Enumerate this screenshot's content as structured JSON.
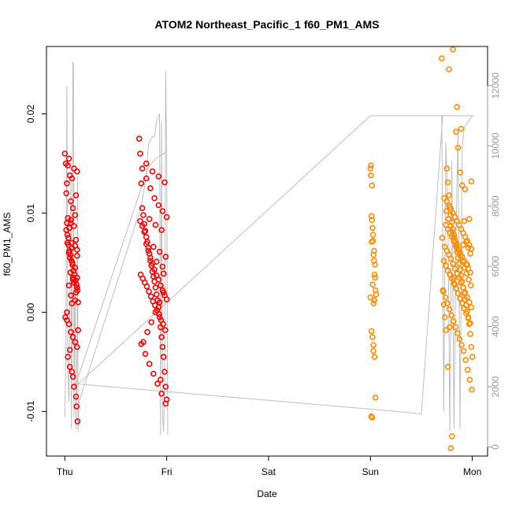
{
  "chart_data": {
    "type": "scatter",
    "title": "ATOM2 Northeast_Pacific_1 f60_PM1_AMS",
    "xlabel": "Date",
    "ylabel": "f60_PM1_AMS",
    "ylabel_right": "",
    "x_ticks": [
      "Thu",
      "Fri",
      "Sat",
      "Sun",
      "Mon"
    ],
    "xlim": [
      -0.18,
      4.15
    ],
    "y_ticks": [
      -0.01,
      0.0,
      0.01,
      0.02
    ],
    "y_tick_labels": [
      "-0.01",
      "0.00",
      "0.01",
      "0.02"
    ],
    "ylim": [
      -0.0145,
      0.0268
    ],
    "y2_ticks": [
      0,
      2000,
      4000,
      6000,
      8000,
      10000,
      12000
    ],
    "y2_tick_labels": [
      "0",
      "2000",
      "4000",
      "6000",
      "8000",
      "10000",
      "12000"
    ],
    "y2lim": [
      -300,
      13300
    ],
    "grid": false,
    "legend": "none",
    "colors": {
      "red_group": "#ff0000",
      "orange_group": "#ff8c00",
      "line": "#bebebe",
      "axis": "#000000"
    },
    "series": [
      {
        "color": "red",
        "x": [
          0.0,
          0.01,
          0.015,
          0.02,
          0.025,
          0.03,
          0.035,
          0.04,
          0.045,
          0.05,
          0.055,
          0.06,
          0.065,
          0.07,
          0.075,
          0.08,
          0.09,
          0.1,
          0.11,
          0.12,
          0.13,
          0.015,
          0.025,
          0.035,
          0.045,
          0.055,
          0.065,
          0.075,
          0.085,
          0.095,
          0.105,
          0.115,
          0.125,
          0.005,
          0.02,
          0.04,
          0.06,
          0.08,
          0.1,
          0.12,
          0.02,
          0.04,
          0.06,
          0.08,
          0.1,
          0.12,
          0.03,
          0.05,
          0.07,
          0.09,
          0.11,
          0.03,
          0.05,
          0.07,
          0.09,
          0.11,
          0.125,
          0.02,
          0.06,
          0.1,
          0.04,
          0.08,
          0.12,
          0.06,
          0.09,
          0.11,
          0.07,
          0.1,
          0.12,
          0.05,
          0.08,
          0.115,
          0.13,
          0.12,
          0.73,
          0.74,
          0.75,
          0.76,
          0.77,
          0.78,
          0.79,
          0.8,
          0.81,
          0.82,
          0.83,
          0.84,
          0.85,
          0.86,
          0.87,
          0.88,
          0.89,
          0.9,
          0.91,
          0.92,
          0.93,
          0.94,
          0.95,
          0.96,
          0.97,
          0.98,
          0.99,
          1.0,
          0.74,
          0.76,
          0.78,
          0.8,
          0.82,
          0.84,
          0.86,
          0.88,
          0.9,
          0.92,
          0.94,
          0.96,
          0.98,
          1.0,
          0.745,
          0.765,
          0.785,
          0.805,
          0.825,
          0.845,
          0.865,
          0.885,
          0.905,
          0.925,
          0.945,
          0.965,
          0.985,
          0.75,
          0.79,
          0.83,
          0.87,
          0.91,
          0.95,
          0.99,
          0.76,
          0.8,
          0.84,
          0.88,
          0.92,
          0.96,
          1.0,
          0.77,
          0.81,
          0.85,
          0.89,
          0.93,
          0.97,
          0.8,
          0.86,
          0.92,
          0.98,
          0.83,
          0.89,
          0.95,
          0.87,
          0.93,
          0.99,
          0.9,
          0.96,
          0.94,
          0.97
        ],
        "y": [
          0.016,
          0.015,
          0.012,
          0.009,
          0.007,
          0.0095,
          0.0075,
          0.006,
          0.0085,
          0.0055,
          0.004,
          0.009,
          0.007,
          0.0065,
          0.005,
          0.0035,
          0.003,
          0.0045,
          0.002,
          0.0025,
          0.001,
          0.0083,
          0.0078,
          0.0068,
          0.0062,
          0.0058,
          0.0052,
          0.0048,
          0.0042,
          0.0038,
          0.0032,
          0.0028,
          0.0022,
          -0.0005,
          -0.0008,
          -0.0012,
          -0.002,
          -0.0025,
          -0.003,
          -0.0035,
          0.013,
          0.0155,
          0.0112,
          0.0105,
          0.0098,
          0.0142,
          0.0148,
          0.0138,
          0.0135,
          0.0145,
          0.0118,
          -0.0045,
          -0.0038,
          -0.006,
          -0.0075,
          -0.0085,
          -0.011,
          0.0,
          0.0017,
          0.0012,
          0.0027,
          0.0033,
          0.0035,
          0.0093,
          0.0087,
          0.0073,
          0.0009,
          0.0067,
          0.0057,
          -0.0055,
          -0.0065,
          -0.0095,
          -0.0018,
          0.0063,
          0.0175,
          0.016,
          0.013,
          0.0105,
          0.0098,
          0.0089,
          0.0082,
          0.0076,
          0.0071,
          0.0065,
          0.0059,
          0.0052,
          0.0047,
          0.0041,
          0.0036,
          0.0031,
          0.0025,
          0.0018,
          0.0012,
          0.0005,
          -0.0005,
          -0.0015,
          -0.0025,
          -0.0035,
          -0.0045,
          -0.006,
          -0.0075,
          -0.0088,
          0.0092,
          0.0087,
          0.0081,
          0.0069,
          0.0062,
          0.0055,
          0.0049,
          0.0043,
          0.0037,
          0.0033,
          0.0027,
          0.0022,
          0.0017,
          0.0013,
          0.0038,
          0.0034,
          0.003,
          0.0026,
          0.0021,
          0.0016,
          0.0011,
          0.0007,
          0.0002,
          -0.0002,
          -0.0008,
          -0.0012,
          -0.0018,
          -0.0032,
          -0.0042,
          -0.0052,
          -0.0062,
          -0.0072,
          -0.0082,
          -0.0092,
          0.0145,
          0.0135,
          0.0125,
          0.0115,
          0.0108,
          0.0102,
          0.0096,
          -0.003,
          -0.002,
          -0.001,
          0.0,
          0.001,
          0.002,
          0.015,
          0.0142,
          0.0137,
          0.0131,
          0.0094,
          0.0088,
          0.0083,
          0.0066,
          0.0061,
          0.0056,
          0.0051,
          0.0046,
          -0.0068,
          0.0039
        ],
        "open": []
      },
      {
        "color": "orange",
        "x": [
          3.0,
          3.005,
          3.01,
          3.015,
          3.02,
          3.025,
          3.03,
          3.035,
          3.04,
          3.045,
          3.05,
          3.055,
          3.0,
          3.01,
          3.02,
          3.03,
          3.04,
          3.05,
          3.005,
          3.015,
          3.025,
          3.035,
          3.045,
          3.008,
          3.018,
          3.028,
          3.038,
          3.012,
          3.022,
          3.032,
          3.7,
          3.71,
          3.72,
          3.73,
          3.74,
          3.75,
          3.76,
          3.77,
          3.78,
          3.79,
          3.8,
          3.81,
          3.82,
          3.83,
          3.84,
          3.85,
          3.86,
          3.87,
          3.88,
          3.89,
          3.9,
          3.91,
          3.92,
          3.93,
          3.94,
          3.95,
          3.96,
          3.97,
          3.98,
          3.99,
          4.0,
          3.705,
          3.725,
          3.745,
          3.765,
          3.785,
          3.805,
          3.825,
          3.845,
          3.865,
          3.885,
          3.905,
          3.925,
          3.945,
          3.965,
          3.985,
          3.715,
          3.735,
          3.755,
          3.775,
          3.795,
          3.815,
          3.835,
          3.855,
          3.875,
          3.895,
          3.915,
          3.935,
          3.955,
          3.975,
          3.995,
          3.72,
          3.74,
          3.76,
          3.78,
          3.8,
          3.82,
          3.84,
          3.86,
          3.88,
          3.9,
          3.92,
          3.94,
          3.96,
          3.98,
          3.73,
          3.75,
          3.77,
          3.79,
          3.81,
          3.83,
          3.85,
          3.87,
          3.89,
          3.91,
          3.93,
          3.95,
          3.97,
          3.99,
          3.74,
          3.76,
          3.78,
          3.8,
          3.82,
          3.84,
          3.86,
          3.88,
          3.9,
          3.92,
          3.94,
          3.96,
          3.98,
          3.75,
          3.77,
          3.79,
          3.81,
          3.83,
          3.85,
          3.87,
          3.89,
          3.91,
          3.93,
          3.95,
          3.97,
          3.99,
          3.76,
          3.78,
          3.8,
          3.82,
          3.84,
          3.86,
          3.88,
          3.9,
          3.92,
          3.94,
          3.96,
          3.98,
          3.77,
          3.81,
          3.85,
          3.89,
          3.93,
          3.97,
          3.79,
          3.83,
          3.87,
          3.91,
          3.95,
          3.99
        ],
        "y": [
          0.0145,
          0.0138,
          0.0097,
          0.0093,
          0.0085,
          0.0072,
          0.0058,
          0.0052,
          0.0038,
          0.0035,
          0.0022,
          0.0018,
          0.0015,
          -0.0019,
          -0.0025,
          -0.0033,
          -0.0045,
          -0.0086,
          0.0148,
          0.0128,
          0.0078,
          0.0062,
          0.0048,
          -0.0105,
          -0.0106,
          -0.0039,
          0.0012,
          0.0071,
          0.0028,
          0.0009,
          0.0256,
          0.0022,
          0.0008,
          -0.0005,
          -0.0018,
          0.0145,
          0.0131,
          0.0118,
          0.0106,
          0.0098,
          0.0091,
          0.0084,
          0.0078,
          0.0072,
          0.0066,
          0.0061,
          0.0055,
          0.0049,
          0.0043,
          0.0037,
          0.0031,
          0.0025,
          0.0019,
          0.0013,
          0.0007,
          0.0001,
          -0.0005,
          -0.0012,
          -0.0022,
          -0.0035,
          -0.0045,
          0.0075,
          0.0115,
          0.0102,
          0.0094,
          0.0087,
          0.0081,
          0.0075,
          0.0069,
          0.0063,
          0.0057,
          0.0051,
          0.0045,
          0.0039,
          0.0033,
          0.0027,
          0.0021,
          0.0015,
          0.0009,
          0.0003,
          -0.0003,
          -0.0009,
          -0.0015,
          -0.0021,
          -0.0027,
          -0.0033,
          -0.0039,
          -0.0048,
          -0.0058,
          -0.0068,
          -0.0078,
          0.0052,
          0.0047,
          0.0042,
          0.0038,
          0.0034,
          0.0029,
          0.0024,
          0.0019,
          0.0014,
          0.0009,
          0.0004,
          -0.0001,
          -0.0006,
          -0.0011,
          0.0066,
          0.0062,
          0.0058,
          0.0054,
          0.0049,
          0.0044,
          0.0039,
          0.0035,
          0.003,
          0.0025,
          0.002,
          0.0015,
          0.001,
          0.0005,
          0.0088,
          0.0084,
          0.008,
          0.0076,
          0.0072,
          0.0068,
          0.0064,
          0.006,
          0.0056,
          0.0052,
          0.0048,
          0.0044,
          0.004,
          0.0112,
          0.0108,
          0.0104,
          0.01,
          0.0096,
          0.0092,
          0.0088,
          0.0084,
          0.008,
          0.0076,
          0.0072,
          0.0068,
          0.0064,
          -0.0055,
          -0.0015,
          -0.0125,
          0.0035,
          0.0182,
          0.0166,
          0.0141,
          0.0128,
          0.0092,
          0.0071,
          0.0065,
          0.0059,
          0.0245,
          0.0265,
          0.0207,
          0.0185,
          0.0124,
          0.0094,
          -0.0137,
          0.0028,
          0.0063,
          0.0068,
          0.0048,
          0.0132
        ],
        "open": []
      }
    ],
    "line_series": {
      "color": "grey",
      "axis": "right",
      "x": [
        0.0,
        0.01,
        0.02,
        0.025,
        0.03,
        0.04,
        0.05,
        0.06,
        0.065,
        0.07,
        0.08,
        0.085,
        0.09,
        0.1,
        0.11,
        0.12,
        0.125,
        0.13,
        0.14,
        0.75,
        0.8,
        0.82,
        0.84,
        0.86,
        0.88,
        0.9,
        0.91,
        0.92,
        0.93,
        0.94,
        0.95,
        0.96,
        0.97,
        0.98,
        0.99,
        1.0,
        1.01,
        1.0,
        0.95,
        0.9,
        0.87,
        0.85,
        0.82,
        0.1,
        3.0,
        3.01,
        3.02,
        3.03,
        3.04,
        3.05,
        3.06,
        3.0,
        3.02,
        3.05,
        3.1,
        3.5,
        3.6,
        3.7,
        3.72,
        3.74,
        3.76,
        3.78,
        3.8,
        3.82,
        3.84,
        3.86,
        3.88,
        3.9,
        3.92,
        3.94,
        3.96,
        3.98,
        4.0,
        4.02,
        3.9,
        3.8,
        3.75,
        3.71,
        3.5,
        3.2,
        0.1
      ],
      "y": [
        1000,
        3000,
        12000,
        7000,
        2500,
        1500,
        5000,
        9000,
        600,
        3000,
        12800,
        12700,
        1000,
        6000,
        600,
        3000,
        9000,
        500,
        1500,
        8000,
        9000,
        10000,
        10200,
        10300,
        10300,
        10800,
        10900,
        11000,
        11050,
        400,
        10800,
        1000,
        500,
        2000,
        12500,
        9800,
        400,
        9800,
        9700,
        9600,
        9500,
        9400,
        9300,
        2000,
        11000,
        11000,
        11000,
        11000,
        11000,
        11000,
        11000,
        11000,
        11000,
        11000,
        11000,
        11000,
        11000,
        11000,
        1200,
        10100,
        8000,
        500,
        9500,
        600,
        7000,
        10500,
        600,
        9900,
        10600,
        10700,
        10800,
        10900,
        11000,
        11000,
        11000,
        11000,
        11000,
        11000,
        1100,
        1200,
        2100
      ]
    }
  }
}
